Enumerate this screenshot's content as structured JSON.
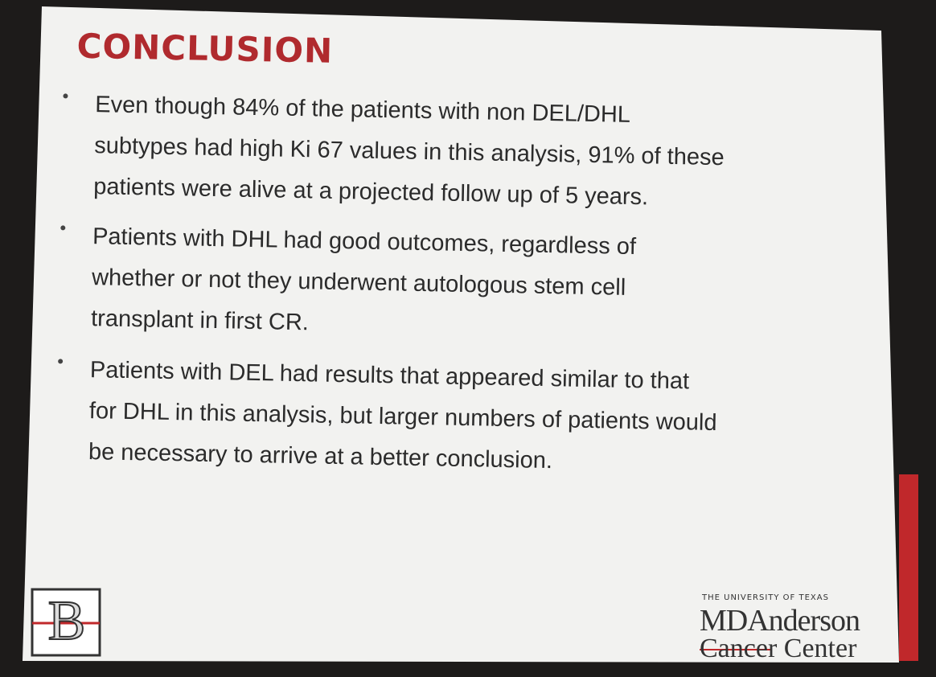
{
  "title": "CONCLUSION",
  "bullets": [
    {
      "lines": [
        "Even though 84% of the patients with non DEL/DHL",
        "subtypes had high Ki 67 values in this analysis, 91% of these",
        "patients were alive at a projected follow up of 5 years."
      ]
    },
    {
      "lines": [
        "Patients with DHL had good outcomes, regardless of",
        "whether or not they underwent autologous stem cell",
        "transplant in first CR."
      ]
    },
    {
      "lines": [
        "Patients with DEL had results that appeared similar to that",
        "for DHL in this analysis, but larger numbers of patients would",
        "be necessary to arrive at a better conclusion."
      ]
    }
  ],
  "logo_left": {
    "letter": "B"
  },
  "logo_right": {
    "top": "THE UNIVERSITY OF TEXAS",
    "name": "MDAnderson",
    "sub": "Cancer Center"
  }
}
